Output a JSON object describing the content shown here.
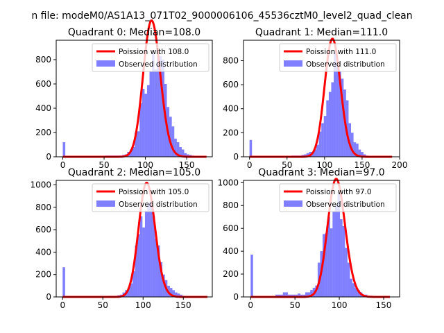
{
  "figure": {
    "suptitle": "n file: modeM0/AS1A13_071T02_9000006106_45536cztM0_level2_quad_clean"
  },
  "colors": {
    "poisson": "#ff0000",
    "observed": "#0000ff",
    "axes": "#000000",
    "background": "#ffffff"
  },
  "chart_data": [
    {
      "type": "bar",
      "title": "Quadrant 0: Median=108.0",
      "xlim": [
        -8,
        181
      ],
      "ylim": [
        0,
        960
      ],
      "xticks": [
        0,
        50,
        100,
        150
      ],
      "yticks": [
        0,
        200,
        400,
        600,
        800
      ],
      "legend": {
        "placement": "top-right",
        "entries": [
          {
            "label": "Poission with 108.0",
            "kind": "line"
          },
          {
            "label": "Observed distribution",
            "kind": "patch"
          }
        ]
      },
      "bin_width": 3,
      "histogram": {
        "x": [
          0,
          3,
          6,
          9,
          12,
          15,
          18,
          21,
          24,
          27,
          30,
          33,
          36,
          39,
          42,
          45,
          48,
          51,
          54,
          57,
          60,
          63,
          66,
          69,
          72,
          75,
          78,
          81,
          84,
          87,
          90,
          93,
          96,
          99,
          102,
          105,
          108,
          111,
          114,
          117,
          120,
          123,
          126,
          129,
          132,
          135,
          138,
          141,
          144,
          147,
          150,
          153,
          156,
          159,
          162,
          165,
          168,
          171,
          174
        ],
        "counts": [
          120,
          0,
          0,
          0,
          0,
          0,
          0,
          0,
          0,
          0,
          0,
          0,
          0,
          0,
          0,
          0,
          0,
          10,
          10,
          10,
          10,
          10,
          10,
          10,
          15,
          20,
          40,
          60,
          80,
          200,
          210,
          440,
          560,
          520,
          590,
          700,
          850,
          720,
          830,
          830,
          800,
          600,
          410,
          330,
          250,
          150,
          120,
          80,
          60,
          30,
          20,
          15,
          10,
          5,
          5,
          5,
          2,
          2,
          2
        ]
      },
      "poisson": {
        "mean": 108.0,
        "x_range": [
          0,
          174
        ]
      }
    },
    {
      "type": "bar",
      "title": "Quadrant 1: Median=111.0",
      "xlim": [
        -8,
        200
      ],
      "ylim": [
        0,
        970
      ],
      "xticks": [
        0,
        50,
        100,
        150,
        200
      ],
      "yticks": [
        0,
        200,
        400,
        600,
        800
      ],
      "legend": {
        "placement": "top-right",
        "entries": [
          {
            "label": "Poission with 111.0",
            "kind": "line"
          },
          {
            "label": "Observed distribution",
            "kind": "patch"
          }
        ]
      },
      "bin_width": 3.3,
      "histogram": {
        "x": [
          0,
          3.3,
          6.6,
          9.9,
          13.2,
          16.5,
          19.8,
          23.1,
          26.4,
          29.7,
          33,
          36.3,
          39.6,
          42.9,
          46.2,
          49.5,
          52.8,
          56.1,
          59.4,
          62.7,
          66,
          69.3,
          72.6,
          75.9,
          79.2,
          82.5,
          85.8,
          89.1,
          92.4,
          95.7,
          99,
          102.3,
          105.6,
          108.9,
          112.2,
          115.5,
          118.8,
          122.1,
          125.4,
          128.7,
          132,
          135.3,
          138.6,
          141.9,
          145.2,
          148.5,
          151.8,
          155.1,
          158.4,
          161.7,
          165,
          168.3,
          171.6,
          174.9,
          178.2,
          181.5,
          184.8,
          188.1
        ],
        "counts": [
          140,
          0,
          0,
          0,
          0,
          0,
          0,
          0,
          0,
          0,
          0,
          0,
          0,
          0,
          0,
          0,
          0,
          10,
          10,
          10,
          10,
          15,
          20,
          30,
          40,
          40,
          60,
          100,
          210,
          280,
          340,
          470,
          540,
          620,
          870,
          790,
          710,
          650,
          560,
          470,
          280,
          200,
          120,
          110,
          60,
          40,
          20,
          10,
          5,
          5,
          5,
          2,
          2,
          2,
          2,
          2,
          2,
          2
        ]
      },
      "poisson": {
        "mean": 111.0,
        "x_range": [
          0,
          190
        ]
      }
    },
    {
      "type": "bar",
      "title": "Quadrant 2: Median=105.0",
      "xlim": [
        -8,
        186
      ],
      "ylim": [
        0,
        1040
      ],
      "xticks": [
        0,
        50,
        100,
        150
      ],
      "yticks": [
        0,
        200,
        400,
        600,
        800,
        1000
      ],
      "legend": {
        "placement": "top-right",
        "entries": [
          {
            "label": "Poission with 105.0",
            "kind": "line"
          },
          {
            "label": "Observed distribution",
            "kind": "patch"
          }
        ]
      },
      "bin_width": 3.1,
      "histogram": {
        "x": [
          0,
          3.1,
          6.2,
          9.3,
          12.4,
          15.5,
          18.6,
          21.7,
          24.8,
          27.9,
          31,
          34.1,
          37.2,
          40.3,
          43.4,
          46.5,
          49.6,
          52.7,
          55.8,
          58.9,
          62,
          65.1,
          68.2,
          71.3,
          74.4,
          77.5,
          80.6,
          83.7,
          86.8,
          89.9,
          93,
          96.1,
          99.2,
          102.3,
          105.4,
          108.5,
          111.6,
          114.7,
          117.8,
          120.9,
          124,
          127.1,
          130.2,
          133.3,
          136.4,
          139.5,
          142.6,
          145.7,
          148.8,
          151.9,
          155,
          158.1,
          161.2,
          164.3,
          167.4,
          170.5,
          173.6,
          176.7
        ],
        "counts": [
          265,
          0,
          0,
          0,
          0,
          0,
          0,
          0,
          0,
          0,
          0,
          0,
          0,
          5,
          5,
          5,
          5,
          5,
          10,
          10,
          10,
          10,
          15,
          20,
          40,
          60,
          80,
          120,
          230,
          460,
          560,
          720,
          620,
          770,
          840,
          850,
          720,
          520,
          460,
          310,
          200,
          150,
          100,
          80,
          60,
          40,
          30,
          20,
          10,
          5,
          5,
          5,
          2,
          2,
          2,
          2,
          2,
          2
        ]
      },
      "poisson": {
        "mean": 105.0,
        "x_range": [
          0,
          180
        ]
      }
    },
    {
      "type": "bar",
      "title": "Quadrant 3: Median=97.0",
      "xlim": [
        -8,
        168
      ],
      "ylim": [
        0,
        1020
      ],
      "xticks": [
        0,
        50,
        100,
        150
      ],
      "yticks": [
        0,
        200,
        400,
        600,
        800,
        1000
      ],
      "legend": {
        "placement": "top-right",
        "entries": [
          {
            "label": "Poission with 97.0",
            "kind": "line"
          },
          {
            "label": "Observed distribution",
            "kind": "patch"
          }
        ]
      },
      "bin_width": 2.8,
      "histogram": {
        "x": [
          0,
          2.8,
          5.6,
          8.4,
          11.2,
          14,
          16.8,
          19.6,
          22.4,
          25.2,
          28,
          30.8,
          33.6,
          36.4,
          39.2,
          42,
          44.8,
          47.6,
          50.4,
          53.2,
          56,
          58.8,
          61.6,
          64.4,
          67.2,
          70,
          72.8,
          75.6,
          78.4,
          81.2,
          84,
          86.8,
          89.6,
          92.4,
          95.2,
          98,
          100.8,
          103.6,
          106.4,
          109.2,
          112,
          114.8,
          117.6,
          120.4,
          123.2,
          126,
          128.8,
          131.6,
          134.4,
          137.2,
          140,
          142.8,
          145.6,
          148.4,
          151.2,
          154
        ],
        "counts": [
          370,
          0,
          0,
          0,
          0,
          0,
          0,
          0,
          0,
          0,
          20,
          20,
          20,
          40,
          40,
          20,
          20,
          20,
          20,
          30,
          20,
          20,
          40,
          40,
          60,
          80,
          100,
          300,
          400,
          550,
          560,
          700,
          600,
          750,
          800,
          900,
          680,
          620,
          430,
          300,
          160,
          120,
          80,
          60,
          40,
          20,
          20,
          10,
          10,
          5,
          5,
          5,
          2,
          2,
          2,
          2
        ]
      },
      "poisson": {
        "mean": 97.0,
        "x_range": [
          0,
          157
        ]
      }
    }
  ]
}
